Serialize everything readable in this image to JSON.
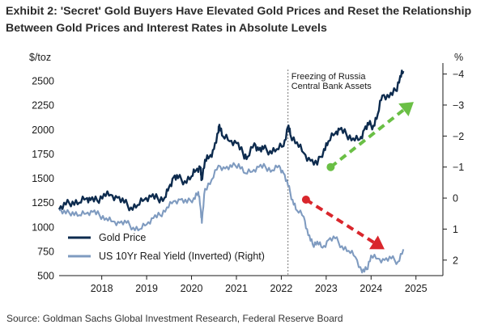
{
  "title_line1": "Exhibit 2: 'Secret' Gold Buyers Have Elevated Gold Prices and Reset the Relationship",
  "title_line2": "Between Gold Prices and Interest Rates in Absolute Levels",
  "source": "Source: Goldman Sachs Global Investment Research, Federal Reserve Board",
  "colors": {
    "gold": "#0d2b4e",
    "real_yield": "#7f9bc0",
    "green_arrow": "#6abf45",
    "red_arrow": "#d9262c",
    "axis": "#1a1a1a"
  },
  "chart_data": {
    "type": "line",
    "left_axis": {
      "unit": "$/toz",
      "ylim": [
        500,
        2650
      ],
      "ticks": [
        500,
        750,
        1000,
        1250,
        1500,
        1750,
        2000,
        2250,
        2500
      ]
    },
    "right_axis": {
      "unit": "%",
      "inverted": true,
      "ylim": [
        2.5,
        -4.25
      ],
      "ticks": [
        2,
        1,
        0,
        -1,
        -2,
        -3,
        -4
      ],
      "tick_labels": [
        "2",
        "1",
        "0",
        "−1",
        "−2",
        "−3",
        "−4"
      ]
    },
    "x_axis": {
      "range": [
        2017.05,
        2025.6
      ],
      "ticks": [
        2018,
        2019,
        2020,
        2021,
        2022,
        2023,
        2024,
        2025
      ],
      "tick_labels": [
        "2018",
        "2019",
        "2020",
        "2021",
        "2022",
        "2023",
        "2024",
        "2025"
      ]
    },
    "annotation": {
      "text_line1": "Freezing of Russia",
      "text_line2": "Central Bank Assets",
      "x": 2022.15
    },
    "legend": {
      "position": "bottom-left",
      "items": [
        "Gold Price",
        "US 10Yr Real Yield (Inverted) (Right)"
      ]
    },
    "grid": false,
    "series": [
      {
        "name": "Gold Price",
        "axis": "left",
        "x": [
          2017.05,
          2017.2,
          2017.35,
          2017.5,
          2017.65,
          2017.75,
          2017.9,
          2018.05,
          2018.2,
          2018.35,
          2018.5,
          2018.65,
          2018.8,
          2018.95,
          2019.1,
          2019.25,
          2019.4,
          2019.5,
          2019.6,
          2019.7,
          2019.85,
          2020.0,
          2020.1,
          2020.2,
          2020.22,
          2020.3,
          2020.4,
          2020.5,
          2020.6,
          2020.62,
          2020.7,
          2020.85,
          2021.0,
          2021.15,
          2021.25,
          2021.4,
          2021.5,
          2021.6,
          2021.75,
          2021.9,
          2022.05,
          2022.15,
          2022.2,
          2022.35,
          2022.5,
          2022.65,
          2022.8,
          2022.95,
          2023.05,
          2023.2,
          2023.3,
          2023.45,
          2023.6,
          2023.75,
          2023.85,
          2023.95,
          2024.05,
          2024.15,
          2024.25,
          2024.4,
          2024.55,
          2024.65,
          2024.72
        ],
        "values": [
          1180,
          1230,
          1260,
          1250,
          1290,
          1275,
          1270,
          1340,
          1330,
          1300,
          1250,
          1200,
          1225,
          1280,
          1310,
          1290,
          1300,
          1410,
          1510,
          1500,
          1470,
          1520,
          1580,
          1610,
          1480,
          1690,
          1720,
          1800,
          1970,
          2050,
          1930,
          1880,
          1860,
          1750,
          1720,
          1860,
          1790,
          1800,
          1780,
          1800,
          1830,
          2030,
          1950,
          1870,
          1760,
          1680,
          1640,
          1800,
          1880,
          1960,
          2000,
          1950,
          1910,
          1900,
          2000,
          2050,
          2040,
          2160,
          2350,
          2330,
          2400,
          2550,
          2600
        ]
      },
      {
        "name": "US 10Yr Real Yield (Inverted) (Right)",
        "axis": "right",
        "x": [
          2017.05,
          2017.2,
          2017.35,
          2017.5,
          2017.65,
          2017.8,
          2017.95,
          2018.1,
          2018.25,
          2018.4,
          2018.55,
          2018.7,
          2018.85,
          2019.0,
          2019.15,
          2019.3,
          2019.45,
          2019.6,
          2019.75,
          2019.9,
          2020.05,
          2020.15,
          2020.2,
          2020.23,
          2020.3,
          2020.45,
          2020.6,
          2020.75,
          2020.9,
          2021.05,
          2021.2,
          2021.35,
          2021.5,
          2021.65,
          2021.8,
          2021.95,
          2022.05,
          2022.15,
          2022.25,
          2022.35,
          2022.5,
          2022.6,
          2022.7,
          2022.8,
          2022.92,
          2023.05,
          2023.2,
          2023.35,
          2023.5,
          2023.65,
          2023.8,
          2023.9,
          2024.0,
          2024.15,
          2024.3,
          2024.45,
          2024.6,
          2024.72
        ],
        "values": [
          0.4,
          0.5,
          0.45,
          0.55,
          0.5,
          0.45,
          0.55,
          0.65,
          0.75,
          0.8,
          0.8,
          0.95,
          1.0,
          0.85,
          0.65,
          0.55,
          0.3,
          0.1,
          0.05,
          0.15,
          0.0,
          -0.2,
          0.3,
          0.8,
          -0.3,
          -0.6,
          -1.05,
          -0.95,
          -1.0,
          -1.1,
          -0.8,
          -0.85,
          -1.0,
          -1.0,
          -0.9,
          -1.05,
          -0.8,
          -0.4,
          0.05,
          0.4,
          0.6,
          1.2,
          1.5,
          1.4,
          1.6,
          1.35,
          1.3,
          1.55,
          1.7,
          1.9,
          2.4,
          2.3,
          1.85,
          1.95,
          2.0,
          1.95,
          2.05,
          1.65
        ]
      }
    ],
    "arrows": [
      {
        "name": "green-arrow",
        "color": "#6abf45",
        "axis": "right",
        "from": [
          2023.1,
          -1.0
        ],
        "to": [
          2024.95,
          -3.1
        ]
      },
      {
        "name": "red-arrow",
        "color": "#d9262c",
        "axis": "right",
        "from": [
          2022.55,
          0.05
        ],
        "to": [
          2024.3,
          1.65
        ]
      }
    ]
  }
}
